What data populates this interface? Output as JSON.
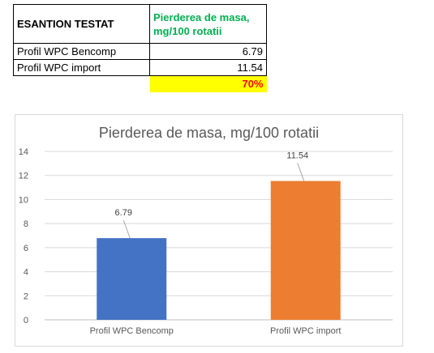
{
  "table": {
    "header_sample": "ESANTION TESTAT",
    "header_metric": "Pierderea de masa, mg/100 rotatii",
    "rows": [
      {
        "label": "Profil WPC Bencomp",
        "value": "6.79"
      },
      {
        "label": "Profil WPC import",
        "value": "11.54"
      }
    ],
    "ratio": "70%"
  },
  "colors": {
    "header_metric": "#00b050",
    "ratio_bg": "#ffff00",
    "ratio_text": "#ff0000",
    "bar_1": "#4472c4",
    "bar_2": "#ed7d31"
  },
  "chart_data": {
    "type": "bar",
    "title": "Pierderea de masa, mg/100 rotatii",
    "categories": [
      "Profil WPC Bencomp",
      "Profil WPC import"
    ],
    "values": [
      6.79,
      11.54
    ],
    "data_labels": [
      "6.79",
      "11.54"
    ],
    "yticks": [
      "0",
      "2",
      "4",
      "6",
      "8",
      "10",
      "12",
      "14"
    ],
    "ylim": [
      0,
      14
    ],
    "grid": true,
    "legend": false
  }
}
